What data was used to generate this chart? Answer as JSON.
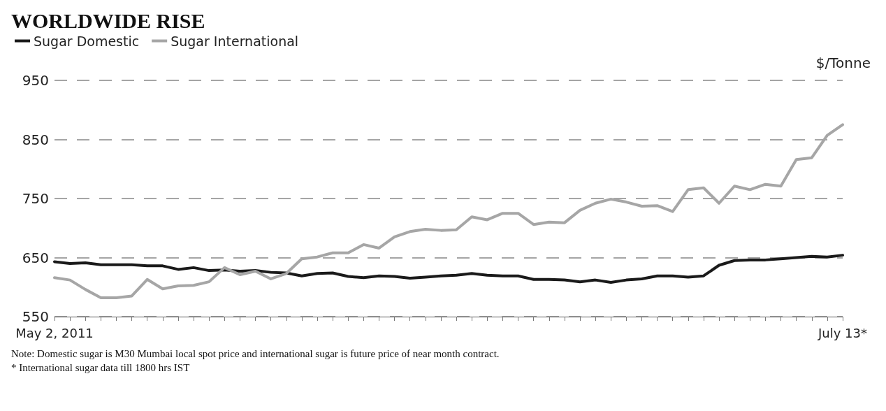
{
  "chart_data": {
    "type": "line",
    "title": "WORLDWIDE RISE",
    "ylabel": "$/Tonne",
    "categories": [
      "May 2, 2011",
      null,
      null,
      null,
      null,
      null,
      null,
      null,
      null,
      null,
      null,
      null,
      null,
      null,
      null,
      null,
      null,
      null,
      null,
      null,
      null,
      null,
      null,
      null,
      null,
      null,
      null,
      null,
      null,
      null,
      null,
      null,
      null,
      null,
      null,
      null,
      null,
      null,
      null,
      null,
      null,
      null,
      null,
      null,
      null,
      null,
      null,
      null,
      null,
      null,
      null,
      "July 13*"
    ],
    "series": [
      {
        "name": "Sugar Domestic",
        "color": "#1a1a1a",
        "values": [
          643,
          640,
          641,
          638,
          638,
          638,
          636,
          636,
          630,
          633,
          628,
          629,
          627,
          628,
          625,
          624,
          619,
          623,
          624,
          618,
          616,
          619,
          618,
          615,
          617,
          619,
          620,
          623,
          620,
          619,
          619,
          613,
          613,
          612,
          609,
          612,
          608,
          612,
          614,
          619,
          619,
          617,
          619,
          637,
          645,
          646,
          646,
          648,
          650,
          652,
          651,
          654
        ]
      },
      {
        "name": "Sugar International",
        "color": "#a6a6a6",
        "values": [
          616,
          612,
          596,
          582,
          582,
          585,
          613,
          597,
          602,
          603,
          609,
          633,
          621,
          627,
          614,
          623,
          648,
          651,
          658,
          658,
          672,
          666,
          685,
          694,
          698,
          696,
          697,
          719,
          714,
          725,
          725,
          706,
          710,
          709,
          730,
          742,
          749,
          744,
          737,
          738,
          728,
          765,
          768,
          742,
          771,
          765,
          774,
          771,
          816,
          819,
          857,
          875
        ]
      }
    ],
    "ylim": [
      550,
      950
    ],
    "yticks": [
      550,
      650,
      750,
      850,
      950
    ],
    "grid": "y",
    "legend": "top left",
    "marker": "none",
    "line_style": "solid",
    "annotations": [
      "Note: Domestic sugar is M30 Mumbai local spot price and international sugar is future price of near month contract.",
      "* International sugar data till 1800 hrs IST"
    ]
  }
}
